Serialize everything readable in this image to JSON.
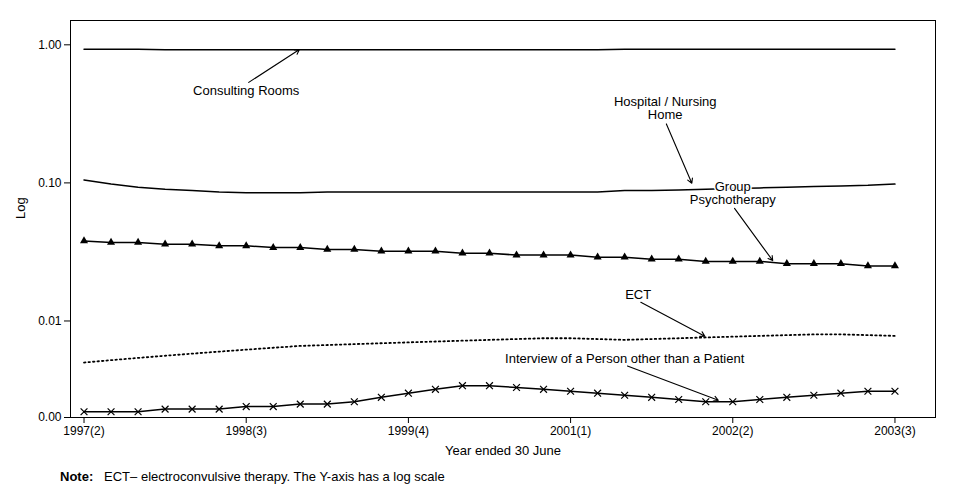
{
  "chart_data": {
    "type": "line",
    "xlabel": "Year ended 30 June",
    "ylabel": "Log",
    "log": "y",
    "grid": false,
    "x": [
      0,
      1,
      2,
      3,
      4,
      5,
      6,
      7,
      8,
      9,
      10,
      11,
      12,
      13,
      14,
      15,
      16,
      17,
      18,
      19,
      20,
      21,
      22,
      23,
      24,
      25,
      26,
      27,
      28,
      29,
      30
    ],
    "xlim": [
      -0.5,
      31.5
    ],
    "xticks": [
      {
        "value": 0,
        "label": "1997(2)"
      },
      {
        "value": 6,
        "label": "1998(3)"
      },
      {
        "value": 12,
        "label": "1999(4)"
      },
      {
        "value": 18,
        "label": "2001(1)"
      },
      {
        "value": 24,
        "label": "2002(2)"
      },
      {
        "value": 30,
        "label": "2003(3)"
      }
    ],
    "ylim": [
      0.002,
      1.5
    ],
    "yticks": [
      {
        "value": 0.002,
        "label": "0.00"
      },
      0.01,
      {
        "value": 0.1,
        "label": "0.10"
      },
      {
        "value": 1,
        "label": "1.00"
      }
    ],
    "series": [
      {
        "name": "Consulting Rooms",
        "color": "black",
        "line_style": "solid",
        "marker": "none",
        "annotation": {
          "x": 8,
          "y": 0.932,
          "text_x": 6.0,
          "text_y": 0.52
        },
        "values": [
          0.93,
          0.93,
          0.93,
          0.92,
          0.92,
          0.92,
          0.92,
          0.92,
          0.92,
          0.92,
          0.92,
          0.92,
          0.92,
          0.92,
          0.92,
          0.92,
          0.92,
          0.92,
          0.92,
          0.92,
          0.93,
          0.93,
          0.93,
          0.93,
          0.93,
          0.93,
          0.93,
          0.93,
          0.93,
          0.93,
          0.93
        ]
      },
      {
        "name": "Hospital / Nursing\nHome",
        "color": "black",
        "line_style": "solid",
        "marker": "none",
        "annotation": {
          "x": 22.5,
          "y": 0.098,
          "text_x": 21.5,
          "text_y": 0.28
        },
        "values": [
          0.105,
          0.098,
          0.093,
          0.09,
          0.088,
          0.086,
          0.085,
          0.085,
          0.085,
          0.086,
          0.086,
          0.086,
          0.086,
          0.086,
          0.086,
          0.086,
          0.086,
          0.086,
          0.086,
          0.086,
          0.088,
          0.088,
          0.089,
          0.09,
          0.091,
          0.092,
          0.093,
          0.094,
          0.095,
          0.096,
          0.098
        ]
      },
      {
        "name": "Group\nPsychotherapy",
        "color": "black",
        "line_style": "solid",
        "marker": "triangle",
        "annotation": {
          "x": 25.5,
          "y": 0.027,
          "text_x": 24.0,
          "text_y": 0.068
        },
        "values": [
          0.038,
          0.037,
          0.037,
          0.036,
          0.036,
          0.035,
          0.035,
          0.034,
          0.034,
          0.033,
          0.033,
          0.032,
          0.032,
          0.032,
          0.031,
          0.031,
          0.03,
          0.03,
          0.03,
          0.029,
          0.029,
          0.028,
          0.028,
          0.027,
          0.027,
          0.027,
          0.026,
          0.026,
          0.026,
          0.025,
          0.025
        ]
      },
      {
        "name": "ECT",
        "color": "black",
        "line_style": "dotted",
        "marker": "none",
        "annotation": {
          "x": 23.0,
          "y": 0.0077,
          "text_x": 20.5,
          "text_y": 0.014
        },
        "values": [
          0.005,
          0.0052,
          0.0054,
          0.0056,
          0.0058,
          0.006,
          0.0062,
          0.0064,
          0.0066,
          0.0067,
          0.0068,
          0.0069,
          0.007,
          0.0071,
          0.0072,
          0.0073,
          0.0074,
          0.0075,
          0.0075,
          0.0074,
          0.0073,
          0.0074,
          0.0075,
          0.0076,
          0.0077,
          0.0078,
          0.0079,
          0.008,
          0.008,
          0.0079,
          0.0078
        ]
      },
      {
        "name": "Interview of a Person other than a Patient",
        "color": "black",
        "line_style": "solid",
        "marker": "x",
        "annotation": {
          "x": 23.5,
          "y": 0.00265,
          "text_x": 20.0,
          "text_y": 0.0048
        },
        "values": [
          0.0022,
          0.0022,
          0.0022,
          0.0023,
          0.0023,
          0.0023,
          0.0024,
          0.0024,
          0.0025,
          0.0025,
          0.0026,
          0.0028,
          0.003,
          0.0032,
          0.0034,
          0.0034,
          0.0033,
          0.0032,
          0.0031,
          0.003,
          0.0029,
          0.0028,
          0.0027,
          0.0026,
          0.0026,
          0.0027,
          0.0028,
          0.0029,
          0.003,
          0.0031,
          0.0031
        ]
      }
    ],
    "caption": [
      "Note:",
      "   ECT– electroconvulsive therapy. The Y-axis has a log scale"
    ]
  }
}
